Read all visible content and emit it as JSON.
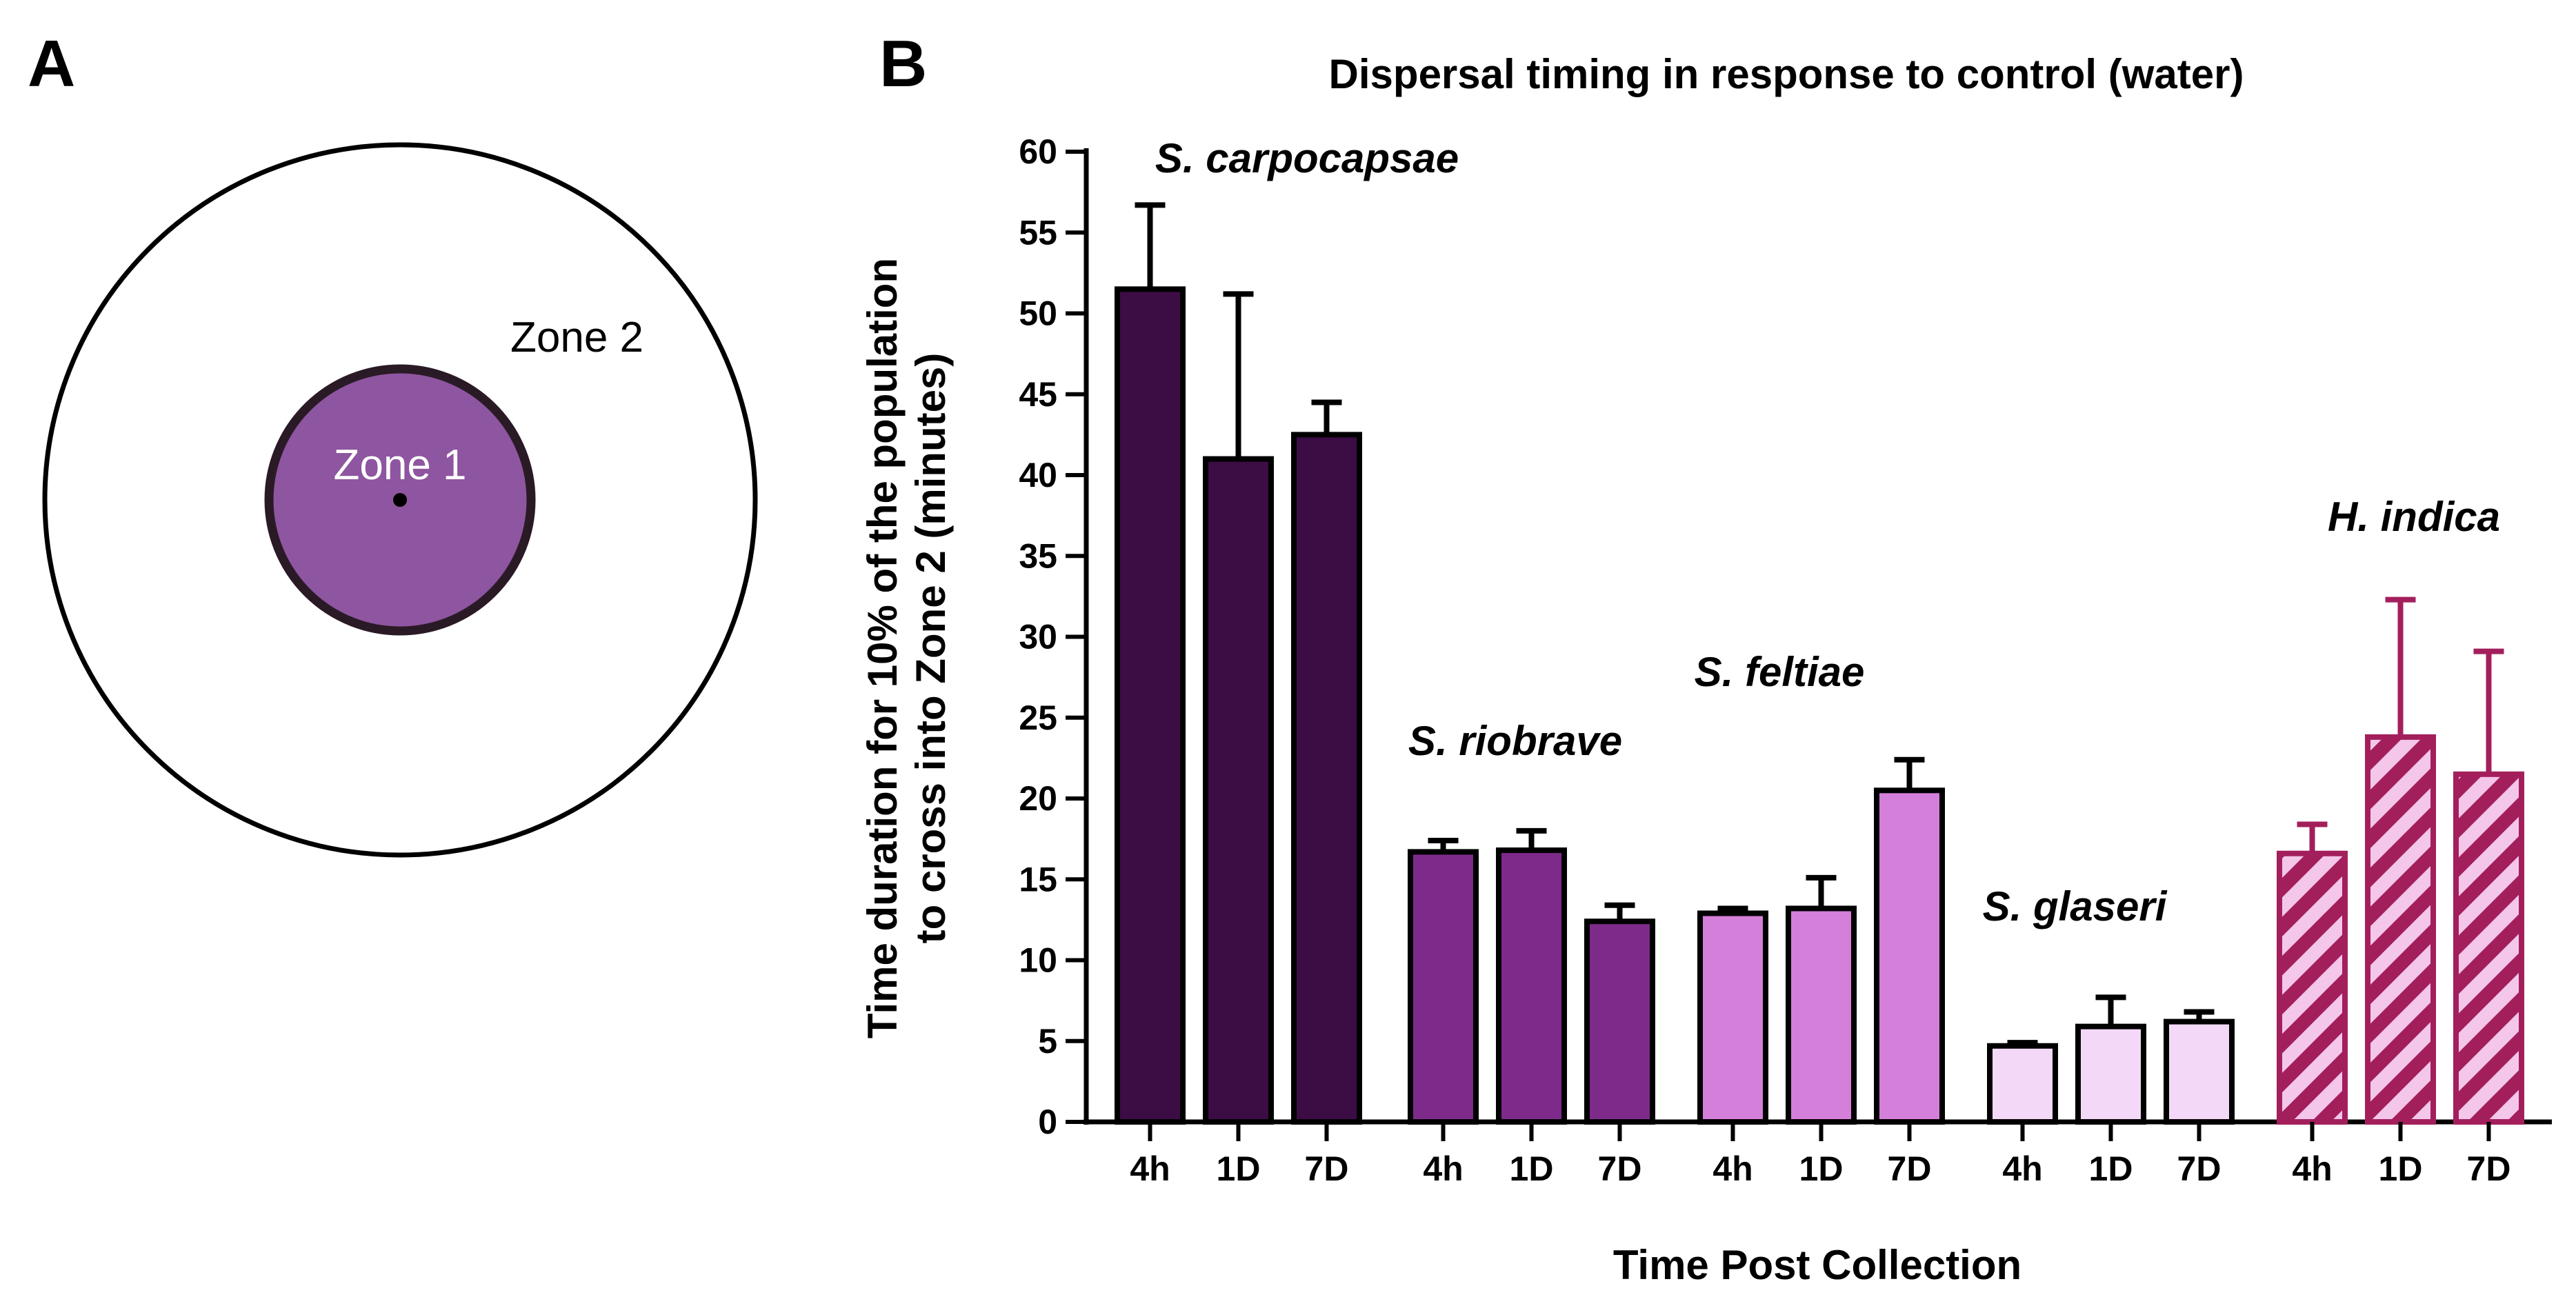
{
  "panel_a": {
    "letter": "A",
    "zone1_label": "Zone 1",
    "zone2_label": "Zone 2",
    "zone1_color": "#8e55a0",
    "outline_color": "#2a1a26"
  },
  "panel_b": {
    "letter": "B"
  },
  "chart_data": {
    "type": "bar",
    "title": "Dispersal timing in response to control (water)",
    "xlabel": "Time Post Collection",
    "ylabel_line1": "Time duration for 10% of the population",
    "ylabel_line2": "to cross into Zone 2 (minutes)",
    "ylim": [
      0,
      60
    ],
    "yticks": [
      0,
      5,
      10,
      15,
      20,
      25,
      30,
      35,
      40,
      45,
      50,
      55,
      60
    ],
    "categories": [
      "4h",
      "1D",
      "7D"
    ],
    "error_bars": "upper",
    "groups": [
      {
        "name": "S. carpocapsae",
        "color": "#3c0c45",
        "pattern": "solid",
        "values": [
          51.5,
          41,
          42.5
        ],
        "errors": [
          5.2,
          10.2,
          2.0
        ]
      },
      {
        "name": "S. riobrave",
        "color": "#7d2a8a",
        "pattern": "solid",
        "values": [
          16.7,
          16.8,
          12.4
        ],
        "errors": [
          0.7,
          1.2,
          1.0
        ]
      },
      {
        "name": "S. feltiae",
        "color": "#d47fd9",
        "pattern": "solid",
        "values": [
          12.9,
          13.2,
          20.5
        ],
        "errors": [
          0.3,
          1.9,
          1.9
        ]
      },
      {
        "name": "S. glaseri",
        "color": "#f3d9f7",
        "pattern": "solid",
        "values": [
          4.7,
          5.9,
          6.2
        ],
        "errors": [
          0.2,
          1.8,
          0.6
        ]
      },
      {
        "name": "H. indica",
        "color": "#a31f5c",
        "pattern": "striped",
        "stripe_color": "#f4c6ea",
        "values": [
          16.6,
          23.8,
          21.5
        ],
        "errors": [
          1.8,
          8.5,
          7.6
        ]
      }
    ]
  }
}
